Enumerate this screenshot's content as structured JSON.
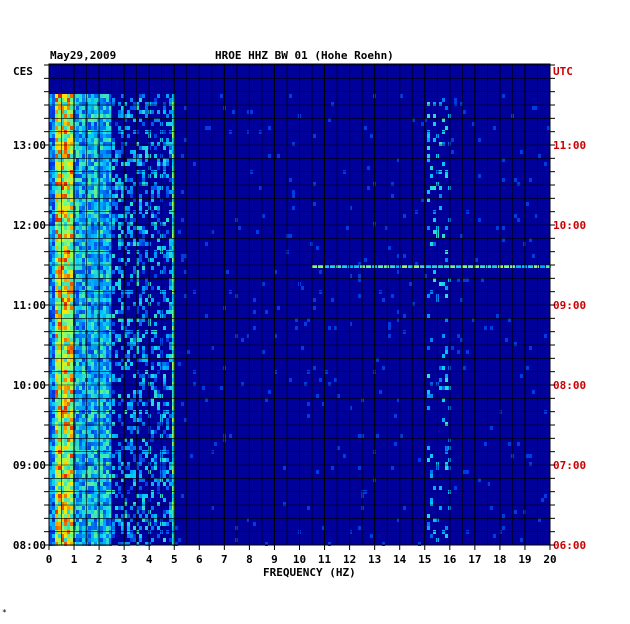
{
  "chart_data": {
    "type": "heatmap",
    "title": "HROE HHZ BW 01 (Hohe Roehn)",
    "date": "May29,2009",
    "left_zone": "CES",
    "right_zone": "UTC",
    "xlabel": "FREQUENCY (HZ)",
    "xlim": [
      0,
      20
    ],
    "x_ticks": [
      "0",
      "1",
      "2",
      "3",
      "4",
      "5",
      "6",
      "7",
      "8",
      "9",
      "10",
      "11",
      "12",
      "13",
      "14",
      "15",
      "16",
      "17",
      "18",
      "19",
      "20"
    ],
    "left_ticks": [
      "13:00",
      "12:00",
      "11:00",
      "10:00",
      "09:00",
      "08:00"
    ],
    "right_ticks": [
      "11:00",
      "10:00",
      "09:00",
      "08:00",
      "07:00",
      "06:00"
    ],
    "time_range_ces": [
      "08:00",
      "13:45"
    ],
    "footer_mark": "*",
    "colors": {
      "background": "#00009a",
      "grid": "#000000",
      "right_axis": "#cc0000",
      "text": "#000000"
    },
    "bands": [
      {
        "hz": [
          0.2,
          0.9
        ],
        "intensity": "high"
      },
      {
        "hz": [
          0.9,
          2.5
        ],
        "intensity": "medium"
      },
      {
        "hz": [
          2.5,
          5.0
        ],
        "intensity": "low-medium"
      },
      {
        "hz": [
          4.9,
          5.0
        ],
        "intensity": "line"
      },
      {
        "hz": [
          15.0,
          16.0
        ],
        "intensity": "low-medium"
      }
    ]
  }
}
